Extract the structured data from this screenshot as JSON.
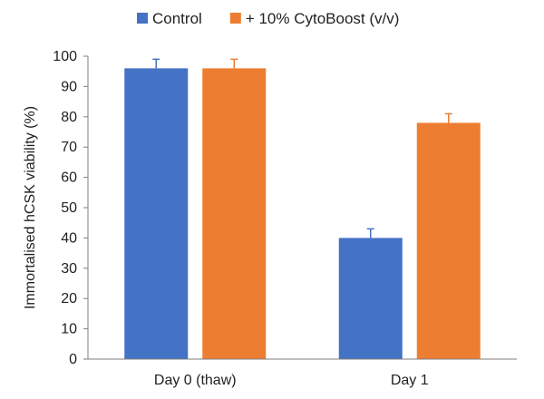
{
  "chart_data": {
    "type": "bar",
    "title": "",
    "xlabel": "",
    "ylabel": "Immortalised hCSK viability (%)",
    "ylim": [
      0,
      100
    ],
    "yticks": [
      0,
      10,
      20,
      30,
      40,
      50,
      60,
      70,
      80,
      90,
      100
    ],
    "categories": [
      "Day 0 (thaw)",
      "Day 1"
    ],
    "series": [
      {
        "name": "Control",
        "color": "#4472C4",
        "values": [
          96,
          40
        ],
        "errors": [
          3,
          3
        ]
      },
      {
        "name": "+ 10% CytoBoost (v/v)",
        "color": "#ED7D31",
        "values": [
          96,
          78
        ],
        "errors": [
          3,
          3
        ]
      }
    ],
    "legend": {
      "position": "top"
    },
    "grid": false
  }
}
